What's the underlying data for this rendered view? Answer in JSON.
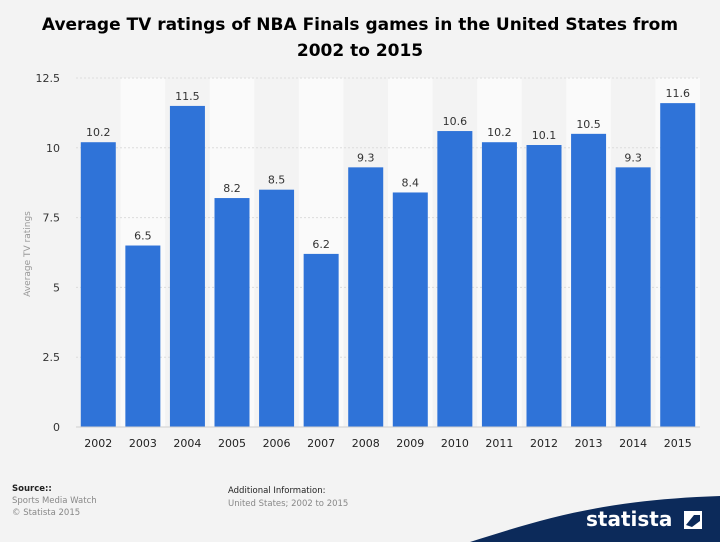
{
  "title": "Average TV ratings of NBA Finals games in the United States from 2002 to 2015",
  "chart_data": {
    "type": "bar",
    "categories": [
      "2002",
      "2003",
      "2004",
      "2005",
      "2006",
      "2007",
      "2008",
      "2009",
      "2010",
      "2011",
      "2012",
      "2013",
      "2014",
      "2015"
    ],
    "values": [
      10.2,
      6.5,
      11.5,
      8.2,
      8.5,
      6.2,
      9.3,
      8.4,
      10.6,
      10.2,
      10.1,
      10.5,
      9.3,
      11.6
    ],
    "value_labels": [
      "10.2",
      "6.5",
      "11.5",
      "8.2",
      "8.5",
      "6.2",
      "9.3",
      "8.4",
      "10.6",
      "10.2",
      "10.1",
      "10.5",
      "9.3",
      "11.6"
    ],
    "ylabel": "Average TV ratings",
    "yticks": [
      0,
      2.5,
      5,
      7.5,
      10,
      12.5
    ],
    "ytick_labels": [
      "0",
      "2.5",
      "5",
      "7.5",
      "10",
      "12.5"
    ],
    "ylim": [
      0,
      12.5
    ],
    "grid": true,
    "bar_color": "#2f73d8"
  },
  "footer": {
    "source_title": "Source::",
    "source_lines": [
      "Sports Media Watch",
      "© Statista 2015"
    ],
    "info_title": "Additional Information:",
    "info_line": "United States; 2002 to 2015"
  },
  "brand": {
    "name": "statista",
    "bg_color": "#0c2a5a"
  }
}
